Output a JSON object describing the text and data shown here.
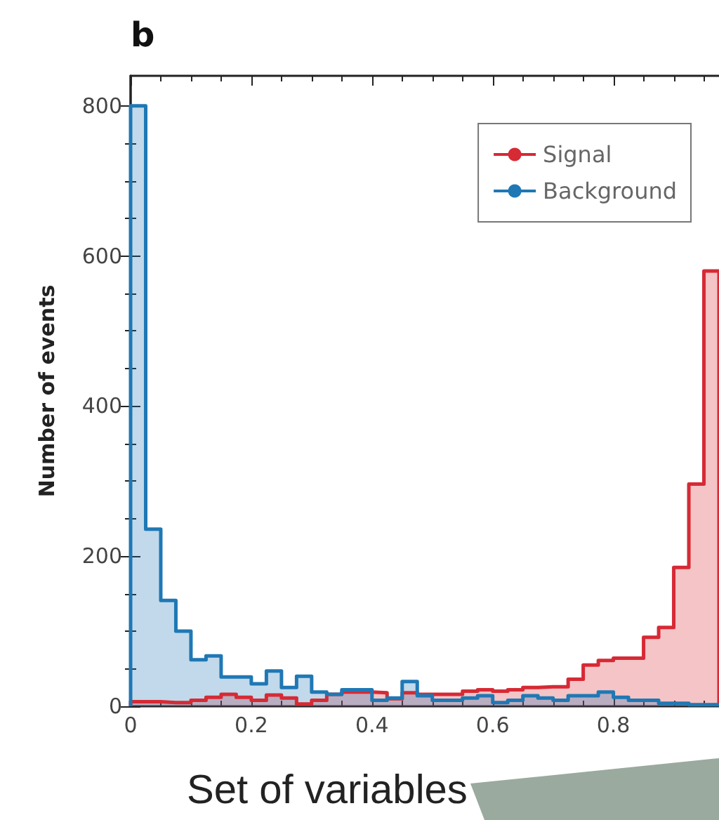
{
  "chart_data": {
    "type": "histogram",
    "title": "b",
    "ylabel": "Number of events",
    "annotations": [
      "Set of variables"
    ],
    "bins": [
      0,
      0.025,
      0.05,
      0.075,
      0.1,
      0.125,
      0.15,
      0.175,
      0.2,
      0.225,
      0.25,
      0.275,
      0.3,
      0.325,
      0.35,
      0.375,
      0.4,
      0.425,
      0.45,
      0.475,
      0.5,
      0.525,
      0.55,
      0.575,
      0.6,
      0.625,
      0.65,
      0.675,
      0.7,
      0.725,
      0.75,
      0.775,
      0.8,
      0.825,
      0.85,
      0.875,
      0.9,
      0.925,
      0.95,
      0.975
    ],
    "series": [
      {
        "name": "Signal",
        "color": "#d62a35",
        "values": [
          6,
          6,
          5,
          5,
          8,
          12,
          16,
          12,
          8,
          15,
          11,
          3,
          8,
          16,
          19,
          19,
          18,
          10,
          18,
          16,
          16,
          16,
          20,
          22,
          20,
          22,
          25,
          26,
          26,
          36,
          55,
          61,
          64,
          64,
          92,
          105,
          185,
          296,
          580
        ]
      },
      {
        "name": "Background",
        "color": "#1f78b4",
        "values": [
          800,
          236,
          141,
          100,
          62,
          67,
          39,
          39,
          30,
          47,
          25,
          40,
          19,
          16,
          22,
          22,
          8,
          11,
          33,
          14,
          8,
          8,
          11,
          14,
          5,
          8,
          14,
          11,
          8,
          14,
          14,
          19,
          12,
          8,
          8,
          4,
          4,
          2,
          2
        ]
      }
    ],
    "xlim": [
      0,
      0.975
    ],
    "xticks": [
      0,
      0.2,
      0.4,
      0.6,
      0.8
    ],
    "ylim": [
      0,
      840
    ],
    "yticks": [
      0,
      200,
      400,
      600,
      800
    ],
    "legend": "top right",
    "grid": false
  }
}
